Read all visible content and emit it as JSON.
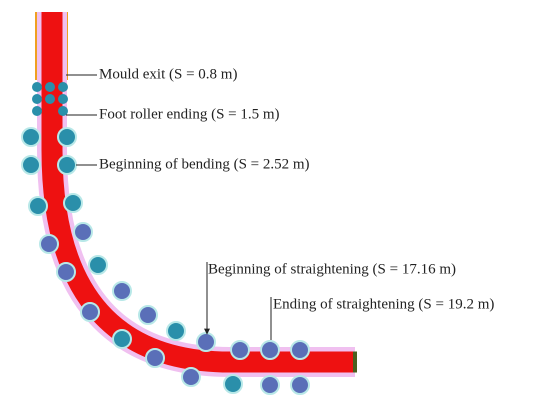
{
  "annotations": [
    {
      "label": "Mould exit (S = 0.8 m)"
    },
    {
      "label": "Foot roller ending (S = 1.5 m)"
    },
    {
      "label": "Beginning of bending (S = 2.52 m)"
    },
    {
      "label": "Beginning of straightening (S = 17.16 m)"
    },
    {
      "label": "Ending of straightening (S = 19.2 m)"
    }
  ]
}
